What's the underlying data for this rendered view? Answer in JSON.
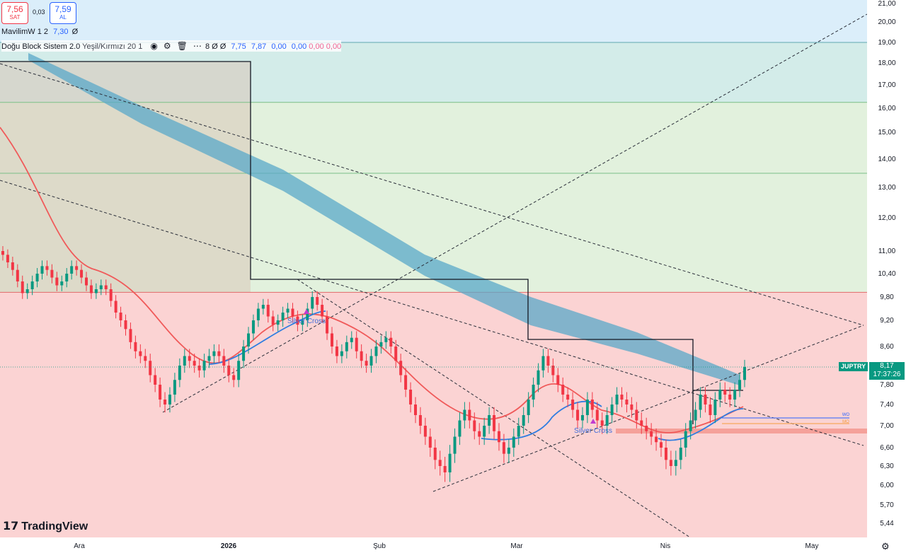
{
  "quote": {
    "sell_price": "7,56",
    "sell_label": "SAT",
    "spread": "0,03",
    "buy_price": "7,59",
    "buy_label": "AL"
  },
  "indicators": [
    {
      "name": "MavilimW 1 2",
      "values": [
        "7,30"
      ],
      "tail": "Ø"
    },
    {
      "name": "Doğu Block Sistem 2.0",
      "params": "Yeşil/Kırmızı 20 1",
      "values": [
        "8 Ø Ø",
        "7,75",
        "7,87",
        "0,00",
        "0,00"
      ],
      "pink_values": [
        "0,00",
        "0,00"
      ]
    }
  ],
  "price_axis": {
    "labels": [
      "21,00",
      "20,00",
      "19,00",
      "18,00",
      "17,00",
      "16,00",
      "15,00",
      "14,00",
      "13,00",
      "12,00",
      "11,00",
      "10,40",
      "9,80",
      "9,20",
      "8,60",
      "7,80",
      "7,40",
      "7,00",
      "6,60",
      "6,30",
      "6,00",
      "5,70",
      "5,44"
    ]
  },
  "time_axis": {
    "labels": [
      "Ara",
      "2026",
      "Şub",
      "Mar",
      "Nis",
      "May"
    ]
  },
  "last_price": {
    "symbol": "JUPTRY",
    "price": "8,17",
    "countdown": "17:37:26"
  },
  "annotations": [
    "Silver Cross",
    "Silver Cross",
    "WO",
    "MO"
  ],
  "brand": "TradingView",
  "colors": {
    "up": "#089981",
    "down": "#f23645",
    "cloud": "#5aa8c8",
    "red_ma": "#f05a5a",
    "blue_ma": "#2f7de1"
  },
  "chart_data": {
    "type": "candlestick",
    "symbol": "JUPTRY",
    "price_axis_ticks": [
      21.0,
      20.0,
      19.0,
      18.0,
      17.0,
      16.0,
      15.0,
      14.0,
      13.0,
      12.0,
      11.0,
      10.4,
      9.8,
      9.2,
      8.6,
      7.8,
      7.4,
      7.0,
      6.6,
      6.3,
      6.0,
      5.7,
      5.44
    ],
    "time_ticks": [
      "Ara",
      "2026",
      "Şub",
      "Mar",
      "Nis",
      "May"
    ],
    "last_price": 8.17,
    "candles_close": [
      10.9,
      10.7,
      10.5,
      10.2,
      9.9,
      10.0,
      10.2,
      10.4,
      10.6,
      10.5,
      10.3,
      10.1,
      10.2,
      10.4,
      10.6,
      10.5,
      10.3,
      10.1,
      9.9,
      10.0,
      10.1,
      10.0,
      9.7,
      9.4,
      9.2,
      9.0,
      8.7,
      8.5,
      8.4,
      8.3,
      8.0,
      7.8,
      7.5,
      7.4,
      7.6,
      7.9,
      8.2,
      8.4,
      8.3,
      8.2,
      8.1,
      8.3,
      8.4,
      8.5,
      8.4,
      8.2,
      8.0,
      7.9,
      8.3,
      8.6,
      8.9,
      9.2,
      9.5,
      9.6,
      9.3,
      9.1,
      9.2,
      9.4,
      9.5,
      9.3,
      9.1,
      9.2,
      9.5,
      9.8,
      9.6,
      9.3,
      8.9,
      8.6,
      8.4,
      8.5,
      8.7,
      8.8,
      8.5,
      8.3,
      8.2,
      8.4,
      8.6,
      8.7,
      8.8,
      8.6,
      8.3,
      8.0,
      7.7,
      7.4,
      7.2,
      7.0,
      6.8,
      6.6,
      6.4,
      6.3,
      6.2,
      6.5,
      6.8,
      7.1,
      7.3,
      7.1,
      6.9,
      6.8,
      7.0,
      7.2,
      6.9,
      6.7,
      6.5,
      6.6,
      6.8,
      7.0,
      7.2,
      7.5,
      7.8,
      8.1,
      8.4,
      8.2,
      8.0,
      7.8,
      7.6,
      7.5,
      7.3,
      7.1,
      7.2,
      7.5,
      7.3,
      7.1,
      7.0,
      7.2,
      7.4,
      7.6,
      7.5,
      7.4,
      7.3,
      7.1,
      7.0,
      6.9,
      6.8,
      6.7,
      6.6,
      6.4,
      6.3,
      6.4,
      6.6,
      6.9,
      7.1,
      7.3,
      7.6,
      7.4,
      7.2,
      7.5,
      7.7,
      7.6,
      7.5,
      7.7,
      7.9,
      8.17
    ],
    "overlays": {
      "red_moving_average": "curve",
      "blue_moving_average": "curve",
      "cloud_band": "declining",
      "wo_level": 7.12,
      "mo_level": 7.02
    },
    "zones": {
      "green_upper": [
        9.92,
        19.0
      ],
      "red_lower": [
        5.3,
        9.92
      ],
      "blue_top": [
        19.0,
        21.5
      ]
    },
    "grid": false
  }
}
